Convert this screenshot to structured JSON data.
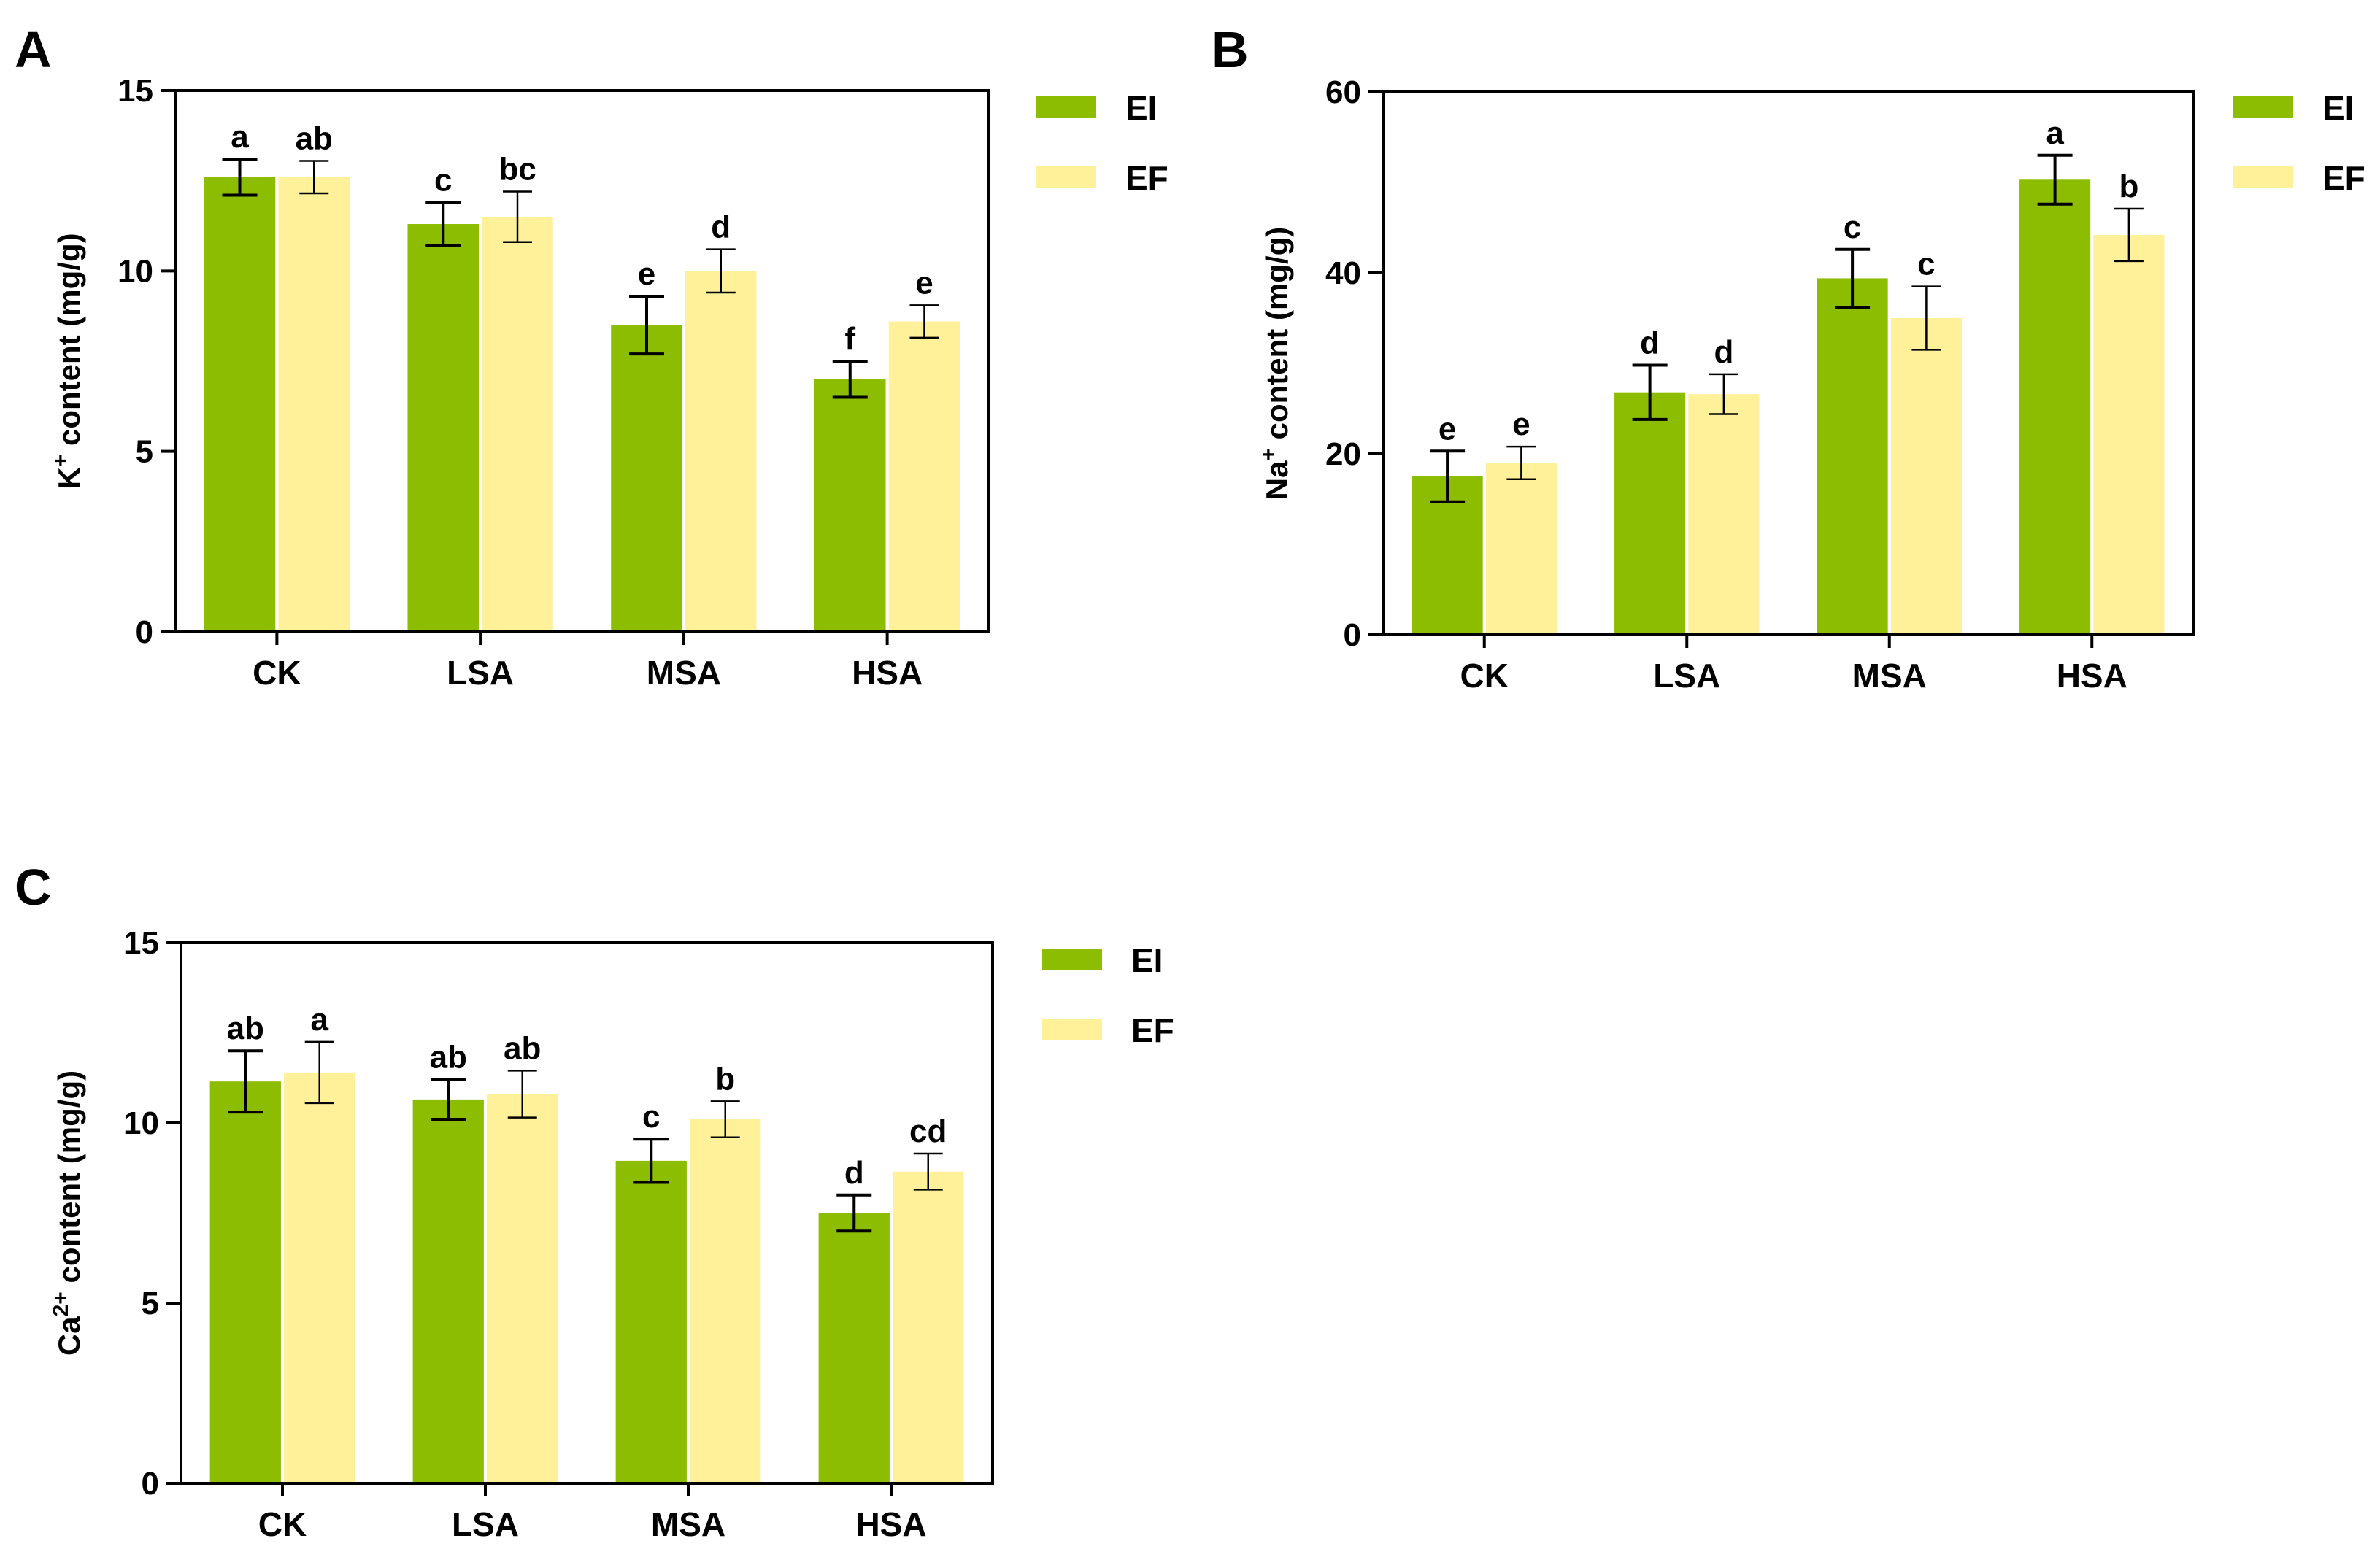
{
  "colors": {
    "EI": "#8cbd00",
    "EF": "#fff09a",
    "axis": "#000000"
  },
  "chart_data": [
    {
      "type": "bar",
      "panel": "A",
      "categories": [
        "CK",
        "LSA",
        "MSA",
        "HSA"
      ],
      "ylabel_main": "K",
      "ylabel_sup": "+",
      "ylabel_rest": " content (mg/g)",
      "ylim": [
        0,
        15
      ],
      "yticks": [
        "0",
        "5",
        "10",
        "15"
      ],
      "legend": [
        "EI",
        "EF"
      ],
      "series": [
        {
          "name": "EI",
          "values": [
            12.6,
            11.3,
            8.5,
            7.0
          ],
          "errors": [
            0.5,
            0.6,
            0.8,
            0.5
          ],
          "letters": [
            "a",
            "c",
            "e",
            "f"
          ]
        },
        {
          "name": "EF",
          "values": [
            12.6,
            11.5,
            10.0,
            8.6
          ],
          "errors": [
            0.45,
            0.7,
            0.6,
            0.45
          ],
          "letters": [
            "ab",
            "bc",
            "d",
            "e"
          ]
        }
      ]
    },
    {
      "type": "bar",
      "panel": "B",
      "categories": [
        "CK",
        "LSA",
        "MSA",
        "HSA"
      ],
      "ylabel_main": "Na",
      "ylabel_sup": "+",
      "ylabel_rest": " content (mg/g)",
      "ylim": [
        0,
        60
      ],
      "yticks": [
        "0",
        "20",
        "40",
        "60"
      ],
      "legend": [
        "EI",
        "EF"
      ],
      "series": [
        {
          "name": "EI",
          "values": [
            17.5,
            26.8,
            39.4,
            50.3
          ],
          "errors": [
            2.8,
            3.0,
            3.2,
            2.7
          ],
          "letters": [
            "e",
            "d",
            "c",
            "a"
          ]
        },
        {
          "name": "EF",
          "values": [
            19.0,
            26.6,
            35.0,
            44.2
          ],
          "errors": [
            1.8,
            2.2,
            3.5,
            2.9
          ],
          "letters": [
            "e",
            "d",
            "c",
            "b"
          ]
        }
      ]
    },
    {
      "type": "bar",
      "panel": "C",
      "categories": [
        "CK",
        "LSA",
        "MSA",
        "HSA"
      ],
      "ylabel_main": "Ca",
      "ylabel_sup": "2+",
      "ylabel_rest": " content (mg/g)",
      "ylim": [
        0,
        15
      ],
      "yticks": [
        "0",
        "5",
        "10",
        "15"
      ],
      "legend": [
        "EI",
        "EF"
      ],
      "series": [
        {
          "name": "EI",
          "values": [
            11.15,
            10.65,
            8.95,
            7.5
          ],
          "errors": [
            0.85,
            0.55,
            0.6,
            0.5
          ],
          "letters": [
            "ab",
            "ab",
            "c",
            "d"
          ]
        },
        {
          "name": "EF",
          "values": [
            11.4,
            10.8,
            10.1,
            8.65
          ],
          "errors": [
            0.85,
            0.65,
            0.5,
            0.5
          ],
          "letters": [
            "a",
            "ab",
            "b",
            "cd"
          ]
        }
      ]
    }
  ]
}
